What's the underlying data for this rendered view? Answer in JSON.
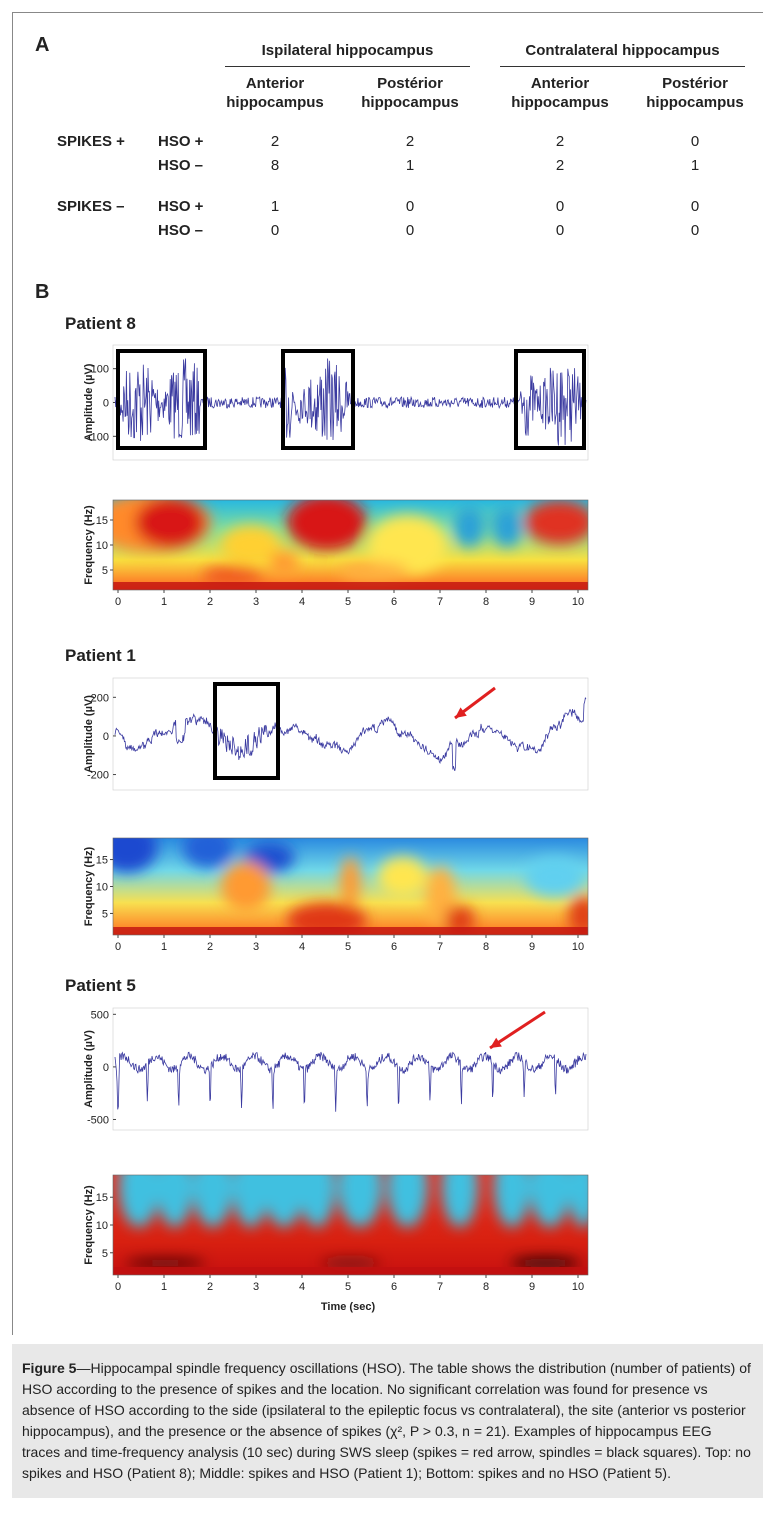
{
  "panel_a": {
    "label": "A",
    "groups": [
      "Ispilateral hippocampus",
      "Contralateral hippocampus"
    ],
    "columns": [
      "Anterior hippocampus",
      "Postérior hippocampus",
      "Anterior hippocampus",
      "Postérior hippocampus"
    ],
    "row_groups": [
      {
        "label": "SPIKES +",
        "rows": [
          {
            "label": "HSO +",
            "values": [
              2,
              2,
              2,
              0
            ]
          },
          {
            "label": "HSO –",
            "values": [
              8,
              1,
              2,
              1
            ]
          }
        ]
      },
      {
        "label": "SPIKES –",
        "rows": [
          {
            "label": "HSO +",
            "values": [
              1,
              0,
              0,
              0
            ]
          },
          {
            "label": "HSO –",
            "values": [
              0,
              0,
              0,
              0
            ]
          }
        ]
      }
    ]
  },
  "panel_b": {
    "label": "B",
    "xlabel": "Time (sec)",
    "xlim": [
      0,
      10
    ],
    "xticks": [
      0,
      1,
      2,
      3,
      4,
      5,
      6,
      7,
      8,
      9,
      10
    ],
    "patients": [
      {
        "title": "Patient 8",
        "trace": {
          "ylabel": "Amplitude (µV)",
          "ylim": [
            -170,
            170
          ],
          "yticks": [
            100,
            0,
            -100
          ]
        },
        "spectrogram": {
          "ylabel": "Frequency (Hz)",
          "ylim": [
            1,
            19
          ],
          "yticks": [
            15,
            10,
            5
          ]
        }
      },
      {
        "title": "Patient 1",
        "trace": {
          "ylabel": "Amplitude (µV)",
          "ylim": [
            -280,
            300
          ],
          "yticks": [
            200,
            0,
            -200
          ]
        },
        "spectrogram": {
          "ylabel": "Frequency (Hz)",
          "ylim": [
            1,
            19
          ],
          "yticks": [
            15,
            10,
            5
          ]
        }
      },
      {
        "title": "Patient 5",
        "trace": {
          "ylabel": "Amplitude (µV)",
          "ylim": [
            -600,
            560
          ],
          "yticks": [
            500,
            0,
            -500
          ]
        },
        "spectrogram": {
          "ylabel": "Frequency (Hz)",
          "ylim": [
            1,
            19
          ],
          "yticks": [
            15,
            10,
            5
          ]
        }
      }
    ]
  },
  "caption": {
    "label": "Figure 5",
    "text": "—Hippocampal spindle frequency oscillations (HSO). The table shows the distribution (number of patients) of HSO according to the presence of spikes and the location. No significant correlation was found for presence vs absence of HSO according to the side (ipsilateral to the epileptic focus vs contralateral), the site (anterior vs posterior hippocampus), and the presence or the absence of spikes (χ², P > 0.3, n = 21). Examples of hippocampus EEG traces and time-frequency analysis (10 sec) during SWS sleep (spikes = red arrow, spindles = black squares). Top: no spikes and HSO (Patient 8); Middle: spikes and HSO (Patient 1); Bottom: spikes and no HSO (Patient 5)."
  }
}
